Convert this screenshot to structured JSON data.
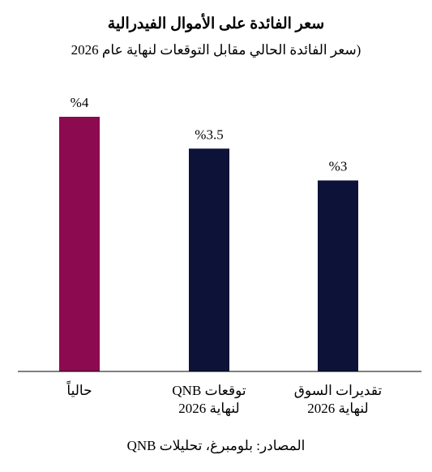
{
  "chart_data": {
    "type": "bar",
    "title": "سعر الفائدة على الأموال الفيدرالية",
    "subtitle": "(سعر الفائدة الحالي مقابل التوقعات لنهاية عام 2026",
    "categories": [
      [
        "حالياً"
      ],
      [
        "توقعات QNB",
        "لنهاية 2026"
      ],
      [
        "تقديرات السوق",
        "لنهاية 2026"
      ]
    ],
    "values": [
      4,
      3.5,
      3
    ],
    "value_labels": [
      "%4",
      "%3.5",
      "%3"
    ],
    "bar_colors": [
      "#8c0a4f",
      "#0d1338",
      "#0d1338"
    ],
    "ylim": [
      0,
      4
    ],
    "grid": false,
    "legend": "none",
    "xlabel": "",
    "ylabel": ""
  },
  "source": "المصادر: بلومبرغ، تحليلات QNB"
}
